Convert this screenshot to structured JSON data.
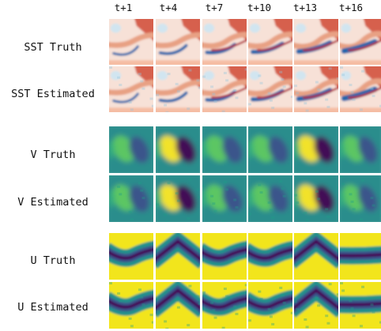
{
  "time_labels": [
    "t+1",
    "t+4",
    "t+7",
    "t+10",
    "t+13",
    "t+16"
  ],
  "row_labels": [
    "SST Truth",
    "SST Estimated",
    "V Truth",
    "V Estimated",
    "U Truth",
    "U Estimated"
  ]
}
